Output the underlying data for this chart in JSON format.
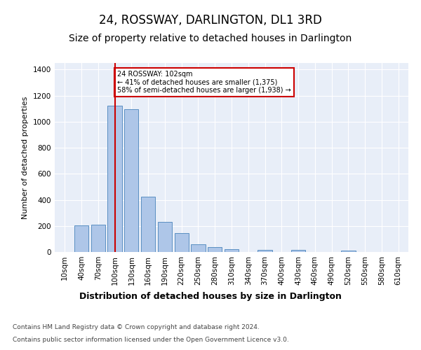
{
  "title": "24, ROSSWAY, DARLINGTON, DL1 3RD",
  "subtitle": "Size of property relative to detached houses in Darlington",
  "xlabel": "Distribution of detached houses by size in Darlington",
  "ylabel": "Number of detached properties",
  "categories": [
    "10sqm",
    "40sqm",
    "70sqm",
    "100sqm",
    "130sqm",
    "160sqm",
    "190sqm",
    "220sqm",
    "250sqm",
    "280sqm",
    "310sqm",
    "340sqm",
    "370sqm",
    "400sqm",
    "430sqm",
    "460sqm",
    "490sqm",
    "520sqm",
    "550sqm",
    "580sqm",
    "610sqm"
  ],
  "values": [
    0,
    205,
    210,
    1120,
    1095,
    425,
    230,
    145,
    57,
    37,
    22,
    0,
    14,
    0,
    15,
    0,
    0,
    10,
    0,
    0,
    0
  ],
  "bar_color": "#aec6e8",
  "bar_edge_color": "#5a8fc2",
  "property_line_bin": 3,
  "red_line_color": "#cc0000",
  "annotation_text": "24 ROSSWAY: 102sqm\n← 41% of detached houses are smaller (1,375)\n58% of semi-detached houses are larger (1,938) →",
  "annotation_box_color": "#ffffff",
  "annotation_box_edge": "#cc0000",
  "ylim": [
    0,
    1450
  ],
  "background_color": "#e8eef8",
  "footer_line1": "Contains HM Land Registry data © Crown copyright and database right 2024.",
  "footer_line2": "Contains public sector information licensed under the Open Government Licence v3.0.",
  "title_fontsize": 12,
  "subtitle_fontsize": 10,
  "axis_label_fontsize": 8,
  "tick_fontsize": 7.5,
  "footer_fontsize": 6.5,
  "xlabel_fontsize": 9
}
